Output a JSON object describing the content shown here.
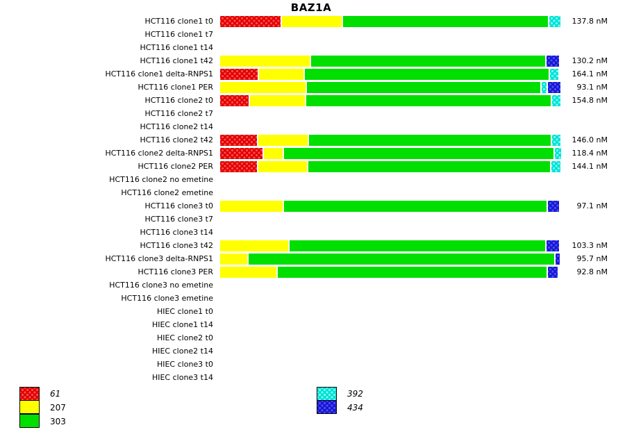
{
  "chart_data": {
    "type": "bar",
    "subtype": "horizontal-stacked-100pct",
    "title": "BAZ1A",
    "unit": "nM",
    "grid": false,
    "series": [
      {
        "id": "61",
        "color": "#e00000",
        "dot": "#ff4d4d",
        "pattern": true,
        "italic": true
      },
      {
        "id": "207",
        "color": "#ffff00",
        "dot": "",
        "pattern": false,
        "italic": false
      },
      {
        "id": "303",
        "color": "#00df00",
        "dot": "",
        "pattern": false,
        "italic": false
      },
      {
        "id": "392",
        "color": "#00e0d6",
        "dot": "#7dfff0",
        "pattern": true,
        "italic": true
      },
      {
        "id": "434",
        "color": "#1717cf",
        "dot": "#4d4dff",
        "pattern": true,
        "italic": true
      }
    ],
    "legend": {
      "left": [
        "61",
        "207",
        "303"
      ],
      "center": [
        "392",
        "434"
      ]
    },
    "rows": [
      {
        "label": "HCT116 clone1 t0",
        "value": "137.8 nM",
        "segments": [
          [
            "61",
            18.0
          ],
          [
            "207",
            17.6
          ],
          [
            "303",
            60.8
          ],
          [
            "392",
            3.1
          ]
        ]
      },
      {
        "label": "HCT116 clone1 t7",
        "value": "",
        "segments": []
      },
      {
        "label": "HCT116 clone1 t14",
        "value": "",
        "segments": []
      },
      {
        "label": "HCT116 clone1 t42",
        "value": "130.2 nM",
        "segments": [
          [
            "207",
            26.5
          ],
          [
            "303",
            69.4
          ],
          [
            "434",
            3.6
          ]
        ]
      },
      {
        "label": "HCT116 clone1 delta-RNPS1",
        "value": "164.1 nM",
        "segments": [
          [
            "61",
            11.1
          ],
          [
            "207",
            13.2
          ],
          [
            "303",
            72.3
          ],
          [
            "392",
            2.4
          ]
        ]
      },
      {
        "label": "HCT116 clone1 PER",
        "value": "93.1 nM",
        "segments": [
          [
            "207",
            25.3
          ],
          [
            "303",
            69.2
          ],
          [
            "392",
            1.4
          ],
          [
            "434",
            3.6
          ]
        ]
      },
      {
        "label": "HCT116 clone2 t0",
        "value": "154.8 nM",
        "segments": [
          [
            "61",
            8.4
          ],
          [
            "207",
            16.2
          ],
          [
            "303",
            72.5
          ],
          [
            "392",
            2.5
          ]
        ]
      },
      {
        "label": "HCT116 clone2 t7",
        "value": "",
        "segments": []
      },
      {
        "label": "HCT116 clone2 t14",
        "value": "",
        "segments": []
      },
      {
        "label": "HCT116 clone2 t42",
        "value": "146.0 nM",
        "segments": [
          [
            "61",
            11.0
          ],
          [
            "207",
            14.6
          ],
          [
            "303",
            71.5
          ],
          [
            "392",
            2.5
          ]
        ]
      },
      {
        "label": "HCT116 clone2 delta-RNPS1",
        "value": "118.4 nM",
        "segments": [
          [
            "61",
            12.5
          ],
          [
            "207",
            5.7
          ],
          [
            "303",
            79.8
          ],
          [
            "392",
            1.7
          ]
        ]
      },
      {
        "label": "HCT116 clone2 PER",
        "value": "144.1 nM",
        "segments": [
          [
            "61",
            11.0
          ],
          [
            "207",
            14.4
          ],
          [
            "303",
            71.5
          ],
          [
            "392",
            2.7
          ]
        ]
      },
      {
        "label": "HCT116 clone2 no emetine",
        "value": "",
        "segments": []
      },
      {
        "label": "HCT116 clone2 emetine",
        "value": "",
        "segments": []
      },
      {
        "label": "HCT116 clone3 t0",
        "value": "97.1 nM",
        "segments": [
          [
            "207",
            18.5
          ],
          [
            "303",
            77.7
          ],
          [
            "434",
            3.4
          ]
        ]
      },
      {
        "label": "HCT116 clone3 t7",
        "value": "",
        "segments": []
      },
      {
        "label": "HCT116 clone3 t14",
        "value": "",
        "segments": []
      },
      {
        "label": "HCT116 clone3 t42",
        "value": "103.3 nM",
        "segments": [
          [
            "207",
            20.2
          ],
          [
            "303",
            75.6
          ],
          [
            "434",
            3.8
          ]
        ]
      },
      {
        "label": "HCT116 clone3 delta-RNPS1",
        "value": "95.7 nM",
        "segments": [
          [
            "207",
            8.0
          ],
          [
            "303",
            90.6
          ],
          [
            "434",
            1.2
          ]
        ]
      },
      {
        "label": "HCT116 clone3 PER",
        "value": "92.8 nM",
        "segments": [
          [
            "207",
            16.6
          ],
          [
            "303",
            79.6
          ],
          [
            "434",
            3.0
          ]
        ]
      },
      {
        "label": "HCT116 clone3 no emetine",
        "value": "",
        "segments": []
      },
      {
        "label": "HCT116 clone3 emetine",
        "value": "",
        "segments": []
      },
      {
        "label": "HIEC clone1 t0",
        "value": "",
        "segments": []
      },
      {
        "label": "HIEC clone1 t14",
        "value": "",
        "segments": []
      },
      {
        "label": "HIEC clone2 t0",
        "value": "",
        "segments": []
      },
      {
        "label": "HIEC clone2 t14",
        "value": "",
        "segments": []
      },
      {
        "label": "HIEC clone3 t0",
        "value": "",
        "segments": []
      },
      {
        "label": "HIEC clone3 t14",
        "value": "",
        "segments": []
      }
    ]
  }
}
